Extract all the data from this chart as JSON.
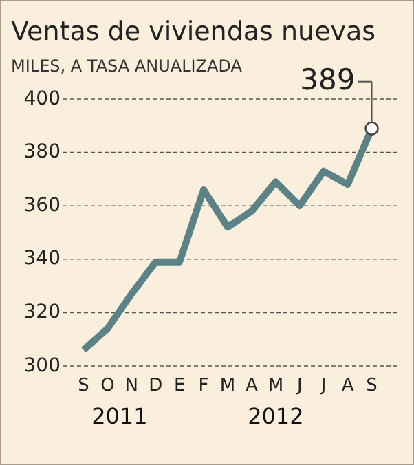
{
  "chart_data": {
    "type": "line",
    "title": "Ventas de viviendas nuevas",
    "subtitle": "MILES, A TASA ANUALIZADA",
    "categories": [
      "S",
      "O",
      "N",
      "D",
      "E",
      "F",
      "M",
      "A",
      "M",
      "J",
      "J",
      "A",
      "S"
    ],
    "series": [
      {
        "color": "#5b8286",
        "values": [
          306,
          314,
          327,
          339,
          339,
          366,
          352,
          358,
          369,
          360,
          373,
          368,
          389
        ],
        "value_labels": [
          null,
          null,
          null,
          null,
          null,
          null,
          null,
          null,
          null,
          null,
          null,
          null,
          "389"
        ]
      }
    ],
    "ylim": [
      300,
      400
    ],
    "yticks": [
      300,
      320,
      340,
      360,
      380,
      400
    ],
    "grid": "y",
    "line_style": "solid",
    "annotations": [
      "2011",
      "2012"
    ]
  }
}
